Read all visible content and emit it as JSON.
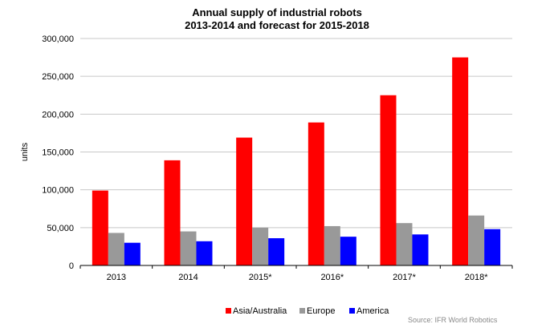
{
  "chart_data": {
    "type": "bar",
    "title": [
      "Annual supply of industrial robots",
      "2013-2014 and forecast for 2015-2018"
    ],
    "xlabel": "",
    "ylabel": "units",
    "categories": [
      "2013",
      "2014",
      "2015*",
      "2016*",
      "2017*",
      "2018*"
    ],
    "ylim": [
      0,
      300000
    ],
    "yticks": [
      0,
      50000,
      100000,
      150000,
      200000,
      250000,
      300000
    ],
    "ytick_labels": [
      "0",
      "50,000",
      "100,000",
      "150,000",
      "200,000",
      "250,000",
      "300,000"
    ],
    "grid": true,
    "legend_position": "bottom",
    "series": [
      {
        "name": "Asia/Australia",
        "color": "#ff0000",
        "values": [
          99000,
          139000,
          169000,
          189000,
          225000,
          275000
        ]
      },
      {
        "name": "Europe",
        "color": "#999999",
        "values": [
          43000,
          45000,
          50000,
          52000,
          56000,
          66000
        ]
      },
      {
        "name": "America",
        "color": "#0000ff",
        "values": [
          30000,
          32000,
          36000,
          38000,
          41000,
          48000
        ]
      }
    ]
  },
  "source_note": "Source: IFR World Robotics"
}
